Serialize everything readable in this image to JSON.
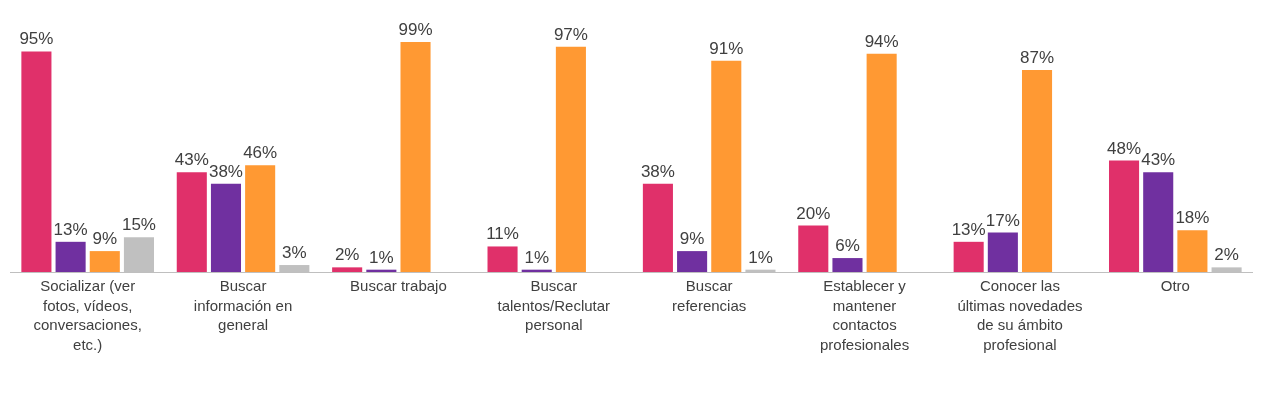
{
  "chart_data": {
    "type": "bar",
    "categories": [
      "Socializar (ver fotos, vídeos, conversaciones, etc.)",
      "Buscar información en general",
      "Buscar trabajo",
      "Buscar talentos/Reclutar personal",
      "Buscar referencias",
      "Establecer y mantener contactos profesionales",
      "Conocer las últimas novedades de su ámbito profesional",
      "Otro"
    ],
    "series": [
      {
        "color": "#e0306a",
        "values": [
          95,
          43,
          2,
          11,
          38,
          20,
          13,
          48
        ],
        "value_labels": [
          "95%",
          "43%",
          "2%",
          "11%",
          "38%",
          "20%",
          "13%",
          "48%"
        ]
      },
      {
        "color": "#7030a0",
        "values": [
          13,
          38,
          1,
          1,
          9,
          6,
          17,
          43
        ],
        "value_labels": [
          "13%",
          "38%",
          "1%",
          "1%",
          "9%",
          "6%",
          "17%",
          "43%"
        ]
      },
      {
        "color": "#ff9933",
        "values": [
          9,
          46,
          99,
          97,
          91,
          94,
          87,
          18
        ],
        "value_labels": [
          "9%",
          "46%",
          "99%",
          "97%",
          "91%",
          "94%",
          "87%",
          "18%"
        ]
      },
      {
        "color": "#c0c0c0",
        "values": [
          15,
          3,
          null,
          null,
          1,
          null,
          null,
          2
        ],
        "value_labels": [
          "15%",
          "3%",
          null,
          null,
          "1%",
          null,
          null,
          "2%"
        ]
      }
    ],
    "grid": false
  }
}
